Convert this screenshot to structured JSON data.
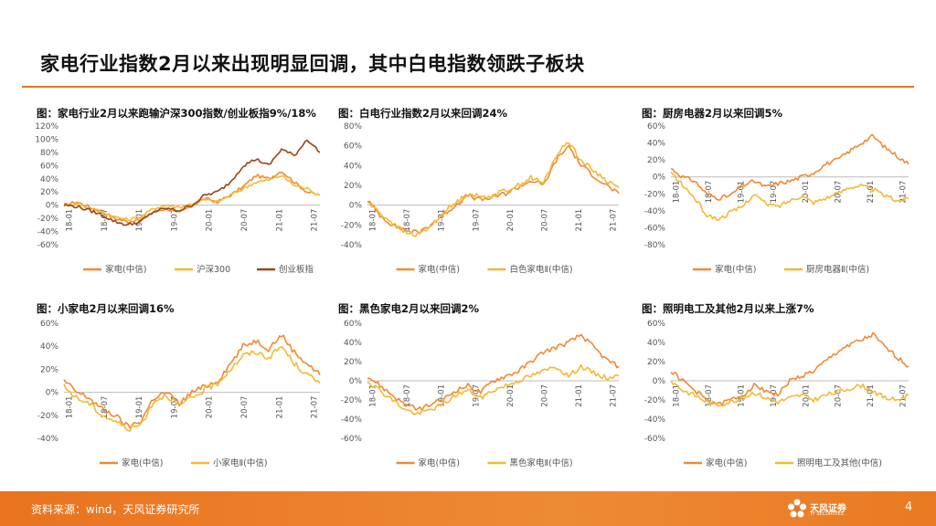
{
  "page": {
    "title": "家电行业指数2月以来出现明显回调，其中白电指数领跌子板块",
    "source": "资料来源：wind，天风证券研究所",
    "page_number": "4",
    "logo_text": "天风证券",
    "logo_sub": "TF SECURITIES"
  },
  "colors": {
    "accent": "#e9731f",
    "series_main": "#f08a34",
    "series_light": "#f5b833",
    "series_dark": "#9a4516"
  },
  "chart_data": [
    {
      "id": "c1",
      "type": "line",
      "title": "图：家电行业2月以来跑输沪深300指数/创业板指9%/18%",
      "x_ticks": [
        "18-01",
        "18-07",
        "19-01",
        "19-07",
        "20-01",
        "20-07",
        "21-01",
        "21-07"
      ],
      "y_ticks": [
        "120%",
        "100%",
        "80%",
        "60%",
        "40%",
        "20%",
        "0%",
        "-20%",
        "-40%",
        "-60%"
      ],
      "ylim": [
        -60,
        120
      ],
      "series": [
        {
          "name": "家电(中信)",
          "values": [
            0,
            5,
            -3,
            -10,
            -20,
            -25,
            -22,
            -10,
            -5,
            -12,
            0,
            10,
            5,
            15,
            28,
            45,
            40,
            52,
            35,
            20,
            15
          ]
        },
        {
          "name": "沪深300",
          "values": [
            0,
            2,
            -5,
            -10,
            -18,
            -22,
            -18,
            -5,
            0,
            -3,
            2,
            8,
            5,
            15,
            25,
            35,
            38,
            45,
            30,
            25,
            15
          ]
        },
        {
          "name": "创业板指",
          "values": [
            0,
            -2,
            -8,
            -15,
            -25,
            -30,
            -25,
            -10,
            -5,
            -8,
            0,
            15,
            20,
            35,
            60,
            70,
            60,
            85,
            75,
            100,
            80
          ]
        }
      ]
    },
    {
      "id": "c2",
      "type": "line",
      "title": "图：白电行业指数2月以来回调24%",
      "x_ticks": [
        "18-01",
        "18-07",
        "19-01",
        "19-07",
        "20-01",
        "20-07",
        "21-01",
        "21-07"
      ],
      "y_ticks": [
        "80%",
        "60%",
        "40%",
        "20%",
        "0%",
        "-20%",
        "-40%"
      ],
      "ylim": [
        -40,
        80
      ],
      "series": [
        {
          "name": "家电(中信)",
          "values": [
            5,
            -10,
            -20,
            -25,
            -28,
            -20,
            -10,
            0,
            10,
            5,
            8,
            12,
            18,
            25,
            20,
            45,
            60,
            40,
            30,
            20,
            12
          ]
        },
        {
          "name": "白色家电Ⅱ(中信)",
          "values": [
            3,
            -8,
            -18,
            -28,
            -30,
            -22,
            -8,
            2,
            12,
            8,
            10,
            15,
            20,
            28,
            22,
            50,
            65,
            45,
            35,
            25,
            18
          ]
        }
      ]
    },
    {
      "id": "c3",
      "type": "line",
      "title": "图：厨房电器2月以来回调5%",
      "x_ticks": [
        "18-01",
        "18-07",
        "19-01",
        "19-07",
        "20-01",
        "20-07",
        "21-01",
        "21-07"
      ],
      "y_ticks": [
        "60%",
        "40%",
        "20%",
        "0%",
        "-20%",
        "-40%",
        "-60%",
        "-80%"
      ],
      "ylim": [
        -80,
        60
      ],
      "series": [
        {
          "name": "家电(中信)",
          "values": [
            10,
            0,
            -5,
            -20,
            -25,
            -22,
            -10,
            -5,
            -12,
            -8,
            -5,
            0,
            5,
            15,
            20,
            30,
            40,
            48,
            35,
            25,
            15
          ]
        },
        {
          "name": "厨房电器Ⅱ(中信)",
          "values": [
            5,
            -10,
            -25,
            -45,
            -50,
            -42,
            -35,
            -20,
            -32,
            -35,
            -28,
            -22,
            -30,
            -25,
            -20,
            -12,
            -10,
            -15,
            -22,
            -28,
            -25
          ]
        }
      ]
    },
    {
      "id": "c4",
      "type": "line",
      "title": "图：小家电2月以来回调16%",
      "x_ticks": [
        "18-01",
        "18-07",
        "19-01",
        "19-07",
        "20-01",
        "20-07",
        "21-01",
        "21-07"
      ],
      "y_ticks": [
        "60%",
        "40%",
        "20%",
        "0%",
        "-20%",
        "-40%"
      ],
      "ylim": [
        -40,
        60
      ],
      "series": [
        {
          "name": "家电(中信)",
          "values": [
            10,
            0,
            -5,
            -15,
            -20,
            -30,
            -25,
            -5,
            0,
            -10,
            0,
            5,
            10,
            25,
            40,
            45,
            38,
            50,
            35,
            25,
            15
          ]
        },
        {
          "name": "小家电Ⅱ(中信)",
          "values": [
            5,
            -5,
            -10,
            -20,
            -25,
            -32,
            -28,
            -8,
            -2,
            -12,
            -5,
            2,
            8,
            20,
            32,
            35,
            30,
            40,
            25,
            15,
            8
          ]
        }
      ]
    },
    {
      "id": "c5",
      "type": "line",
      "title": "图：黑色家电2月以来回调2%",
      "x_ticks": [
        "18-01",
        "18-07",
        "19-01",
        "19-07",
        "20-01",
        "20-07",
        "21-01",
        "21-07"
      ],
      "y_ticks": [
        "60%",
        "40%",
        "20%",
        "0%",
        "-20%",
        "-40%",
        "-60%"
      ],
      "ylim": [
        -60,
        60
      ],
      "series": [
        {
          "name": "家电(中信)",
          "values": [
            5,
            -5,
            -15,
            -25,
            -30,
            -25,
            -20,
            -10,
            -5,
            -12,
            0,
            5,
            10,
            20,
            30,
            35,
            40,
            48,
            35,
            22,
            15
          ]
        },
        {
          "name": "黑色家电Ⅱ(中信)",
          "values": [
            0,
            -10,
            -20,
            -30,
            -35,
            -30,
            -25,
            -15,
            -10,
            -18,
            -10,
            -5,
            0,
            5,
            10,
            15,
            5,
            15,
            8,
            3,
            5
          ]
        }
      ]
    },
    {
      "id": "c6",
      "type": "line",
      "title": "图：照明电工及其他2月以来上涨7%",
      "x_ticks": [
        "18-01",
        "18-07",
        "19-01",
        "19-07",
        "20-01",
        "20-07",
        "21-01",
        "21-07"
      ],
      "y_ticks": [
        "60%",
        "40%",
        "20%",
        "0%",
        "-20%",
        "-40%",
        "-60%"
      ],
      "ylim": [
        -60,
        60
      ],
      "series": [
        {
          "name": "家电(中信)",
          "values": [
            10,
            0,
            -10,
            -20,
            -25,
            -20,
            -15,
            -5,
            -10,
            -15,
            0,
            5,
            10,
            20,
            30,
            38,
            42,
            48,
            35,
            25,
            15
          ]
        },
        {
          "name": "照明电工及其他(中信)",
          "values": [
            0,
            -10,
            -15,
            -22,
            -25,
            -22,
            -18,
            -12,
            -18,
            -22,
            -18,
            -15,
            -20,
            -15,
            -12,
            -8,
            -5,
            -10,
            -18,
            -20,
            -15
          ]
        }
      ]
    }
  ]
}
